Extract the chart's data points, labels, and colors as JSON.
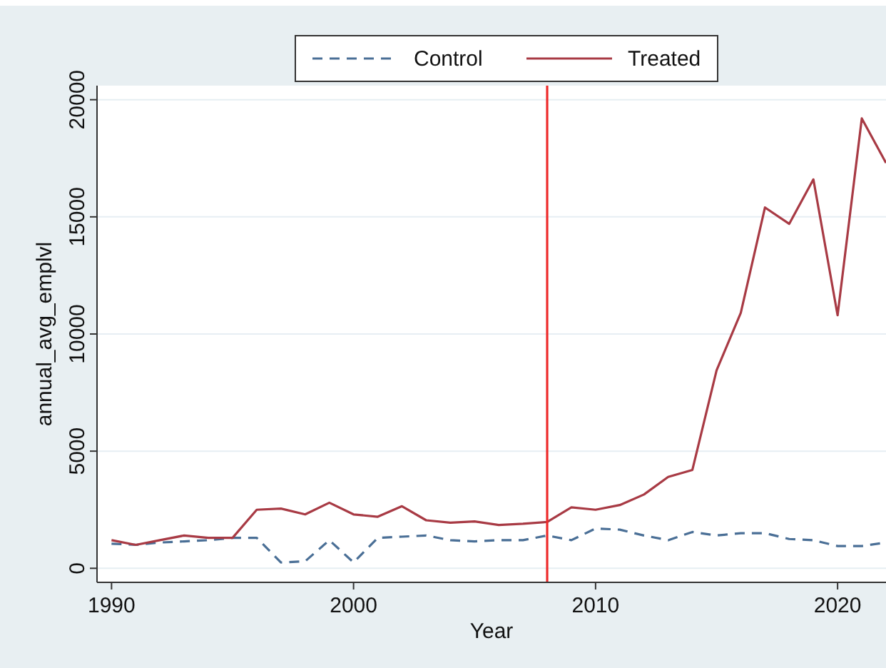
{
  "chart_data": {
    "type": "line",
    "xlabel": "Year",
    "ylabel": "annual_avg_emplvl",
    "x": [
      1990,
      1991,
      1992,
      1993,
      1994,
      1995,
      1996,
      1997,
      1998,
      1999,
      2000,
      2001,
      2002,
      2003,
      2004,
      2005,
      2006,
      2007,
      2008,
      2009,
      2010,
      2011,
      2012,
      2013,
      2014,
      2015,
      2016,
      2017,
      2018,
      2019,
      2020,
      2021,
      2022
    ],
    "series": [
      {
        "name": "Control",
        "color": "#4a6f96",
        "line_style": "dashed",
        "values": [
          1050,
          1000,
          1100,
          1150,
          1200,
          1300,
          1300,
          250,
          300,
          1200,
          250,
          1300,
          1350,
          1400,
          1200,
          1150,
          1200,
          1200,
          1400,
          1200,
          1700,
          1650,
          1400,
          1200,
          1550,
          1400,
          1500,
          1500,
          1250,
          1200,
          950,
          950,
          1100
        ]
      },
      {
        "name": "Treated",
        "color": "#a83a44",
        "line_style": "solid",
        "values": [
          1200,
          1000,
          1200,
          1400,
          1300,
          1300,
          2500,
          2550,
          2300,
          2800,
          2300,
          2200,
          2650,
          2050,
          1950,
          2000,
          1850,
          1900,
          1980,
          2600,
          2500,
          2700,
          3150,
          3900,
          4200,
          8450,
          10900,
          15400,
          14700,
          16600,
          10800,
          19200,
          17300
        ]
      }
    ],
    "xlim": [
      1989.4,
      2022
    ],
    "xticks": [
      1990,
      2000,
      2010,
      2020
    ],
    "ylim": [
      -600,
      20600
    ],
    "yticks": [
      0,
      5000,
      10000,
      15000,
      20000
    ],
    "grid": "y",
    "legend": "top",
    "ref_lines": [
      {
        "axis": "x",
        "value": 2008,
        "color": "#ee2a2a"
      }
    ]
  }
}
